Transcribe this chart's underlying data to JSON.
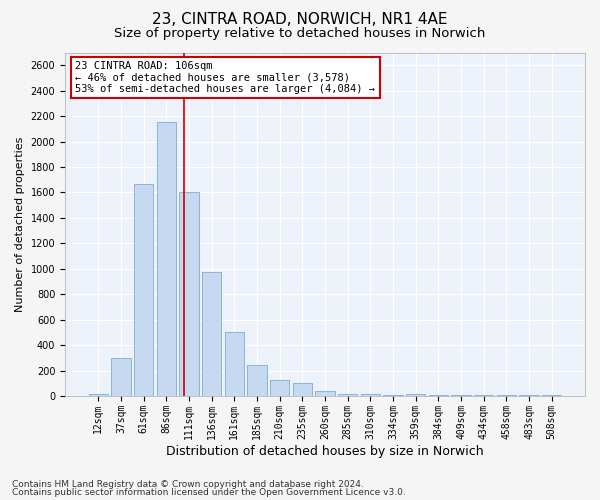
{
  "title1": "23, CINTRA ROAD, NORWICH, NR1 4AE",
  "title2": "Size of property relative to detached houses in Norwich",
  "xlabel": "Distribution of detached houses by size in Norwich",
  "ylabel": "Number of detached properties",
  "categories": [
    "12sqm",
    "37sqm",
    "61sqm",
    "86sqm",
    "111sqm",
    "136sqm",
    "161sqm",
    "185sqm",
    "210sqm",
    "235sqm",
    "260sqm",
    "285sqm",
    "310sqm",
    "334sqm",
    "359sqm",
    "384sqm",
    "409sqm",
    "434sqm",
    "458sqm",
    "483sqm",
    "508sqm"
  ],
  "values": [
    20,
    300,
    1670,
    2150,
    1600,
    975,
    500,
    245,
    125,
    105,
    40,
    15,
    20,
    10,
    15,
    5,
    10,
    5,
    5,
    5,
    5
  ],
  "bar_color": "#c6d9f0",
  "bar_edge_color": "#7aadd4",
  "bar_width": 0.85,
  "ylim": [
    0,
    2700
  ],
  "yticks": [
    0,
    200,
    400,
    600,
    800,
    1000,
    1200,
    1400,
    1600,
    1800,
    2000,
    2200,
    2400,
    2600
  ],
  "vline_color": "#cc0000",
  "annotation_title": "23 CINTRA ROAD: 106sqm",
  "annotation_line1": "← 46% of detached houses are smaller (3,578)",
  "annotation_line2": "53% of semi-detached houses are larger (4,084) →",
  "annotation_box_color": "#ffffff",
  "annotation_box_edge": "#cc0000",
  "footer1": "Contains HM Land Registry data © Crown copyright and database right 2024.",
  "footer2": "Contains public sector information licensed under the Open Government Licence v3.0.",
  "bg_color": "#edf2fa",
  "grid_color": "#ffffff",
  "title1_fontsize": 11,
  "title2_fontsize": 9.5,
  "xlabel_fontsize": 9,
  "ylabel_fontsize": 8,
  "tick_fontsize": 7,
  "annotation_fontsize": 7.5,
  "footer_fontsize": 6.5
}
